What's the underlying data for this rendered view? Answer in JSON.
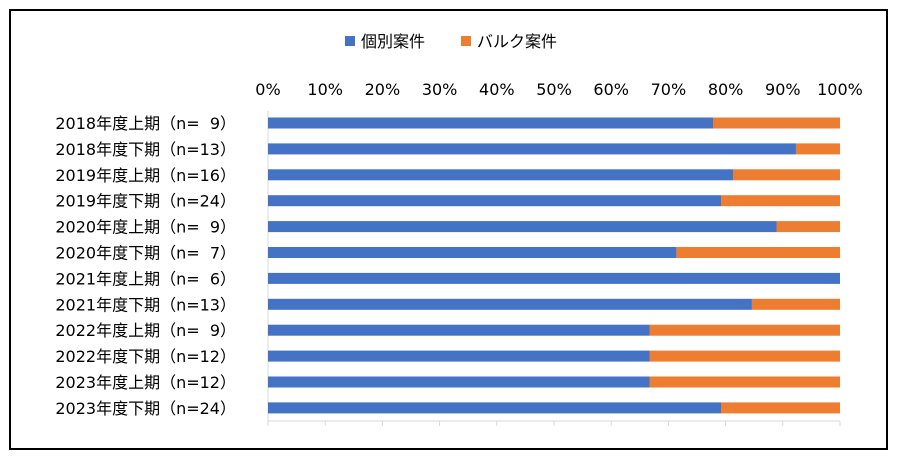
{
  "chart_data": {
    "type": "bar",
    "orientation": "horizontal",
    "stacked": true,
    "normalized": true,
    "categories": [
      "2018年度上期（n=  9）",
      "2018年度下期（n=13）",
      "2019年度上期（n=16）",
      "2019年度下期（n=24）",
      "2020年度上期（n=  9）",
      "2020年度下期（n=  7）",
      "2021年度上期（n=  6）",
      "2021年度下期（n=13）",
      "2022年度上期（n=  9）",
      "2022年度下期（n=12）",
      "2023年度上期（n=12）",
      "2023年度下期（n=24）"
    ],
    "series": [
      {
        "name": "個別案件",
        "color": "#4472C4",
        "values": [
          77.8,
          92.3,
          81.3,
          79.2,
          88.9,
          71.4,
          100.0,
          84.6,
          66.7,
          66.7,
          66.7,
          79.2
        ]
      },
      {
        "name": "バルク案件",
        "color": "#ED7D31",
        "values": [
          22.2,
          7.7,
          18.7,
          20.8,
          11.1,
          28.6,
          0.0,
          15.4,
          33.3,
          33.3,
          33.3,
          20.8
        ]
      }
    ],
    "xlim": [
      0,
      100
    ],
    "xticks": [
      "0%",
      "10%",
      "20%",
      "30%",
      "40%",
      "50%",
      "60%",
      "70%",
      "80%",
      "90%",
      "100%"
    ],
    "legend_position": "top",
    "axis_position": "top",
    "grid": false
  }
}
